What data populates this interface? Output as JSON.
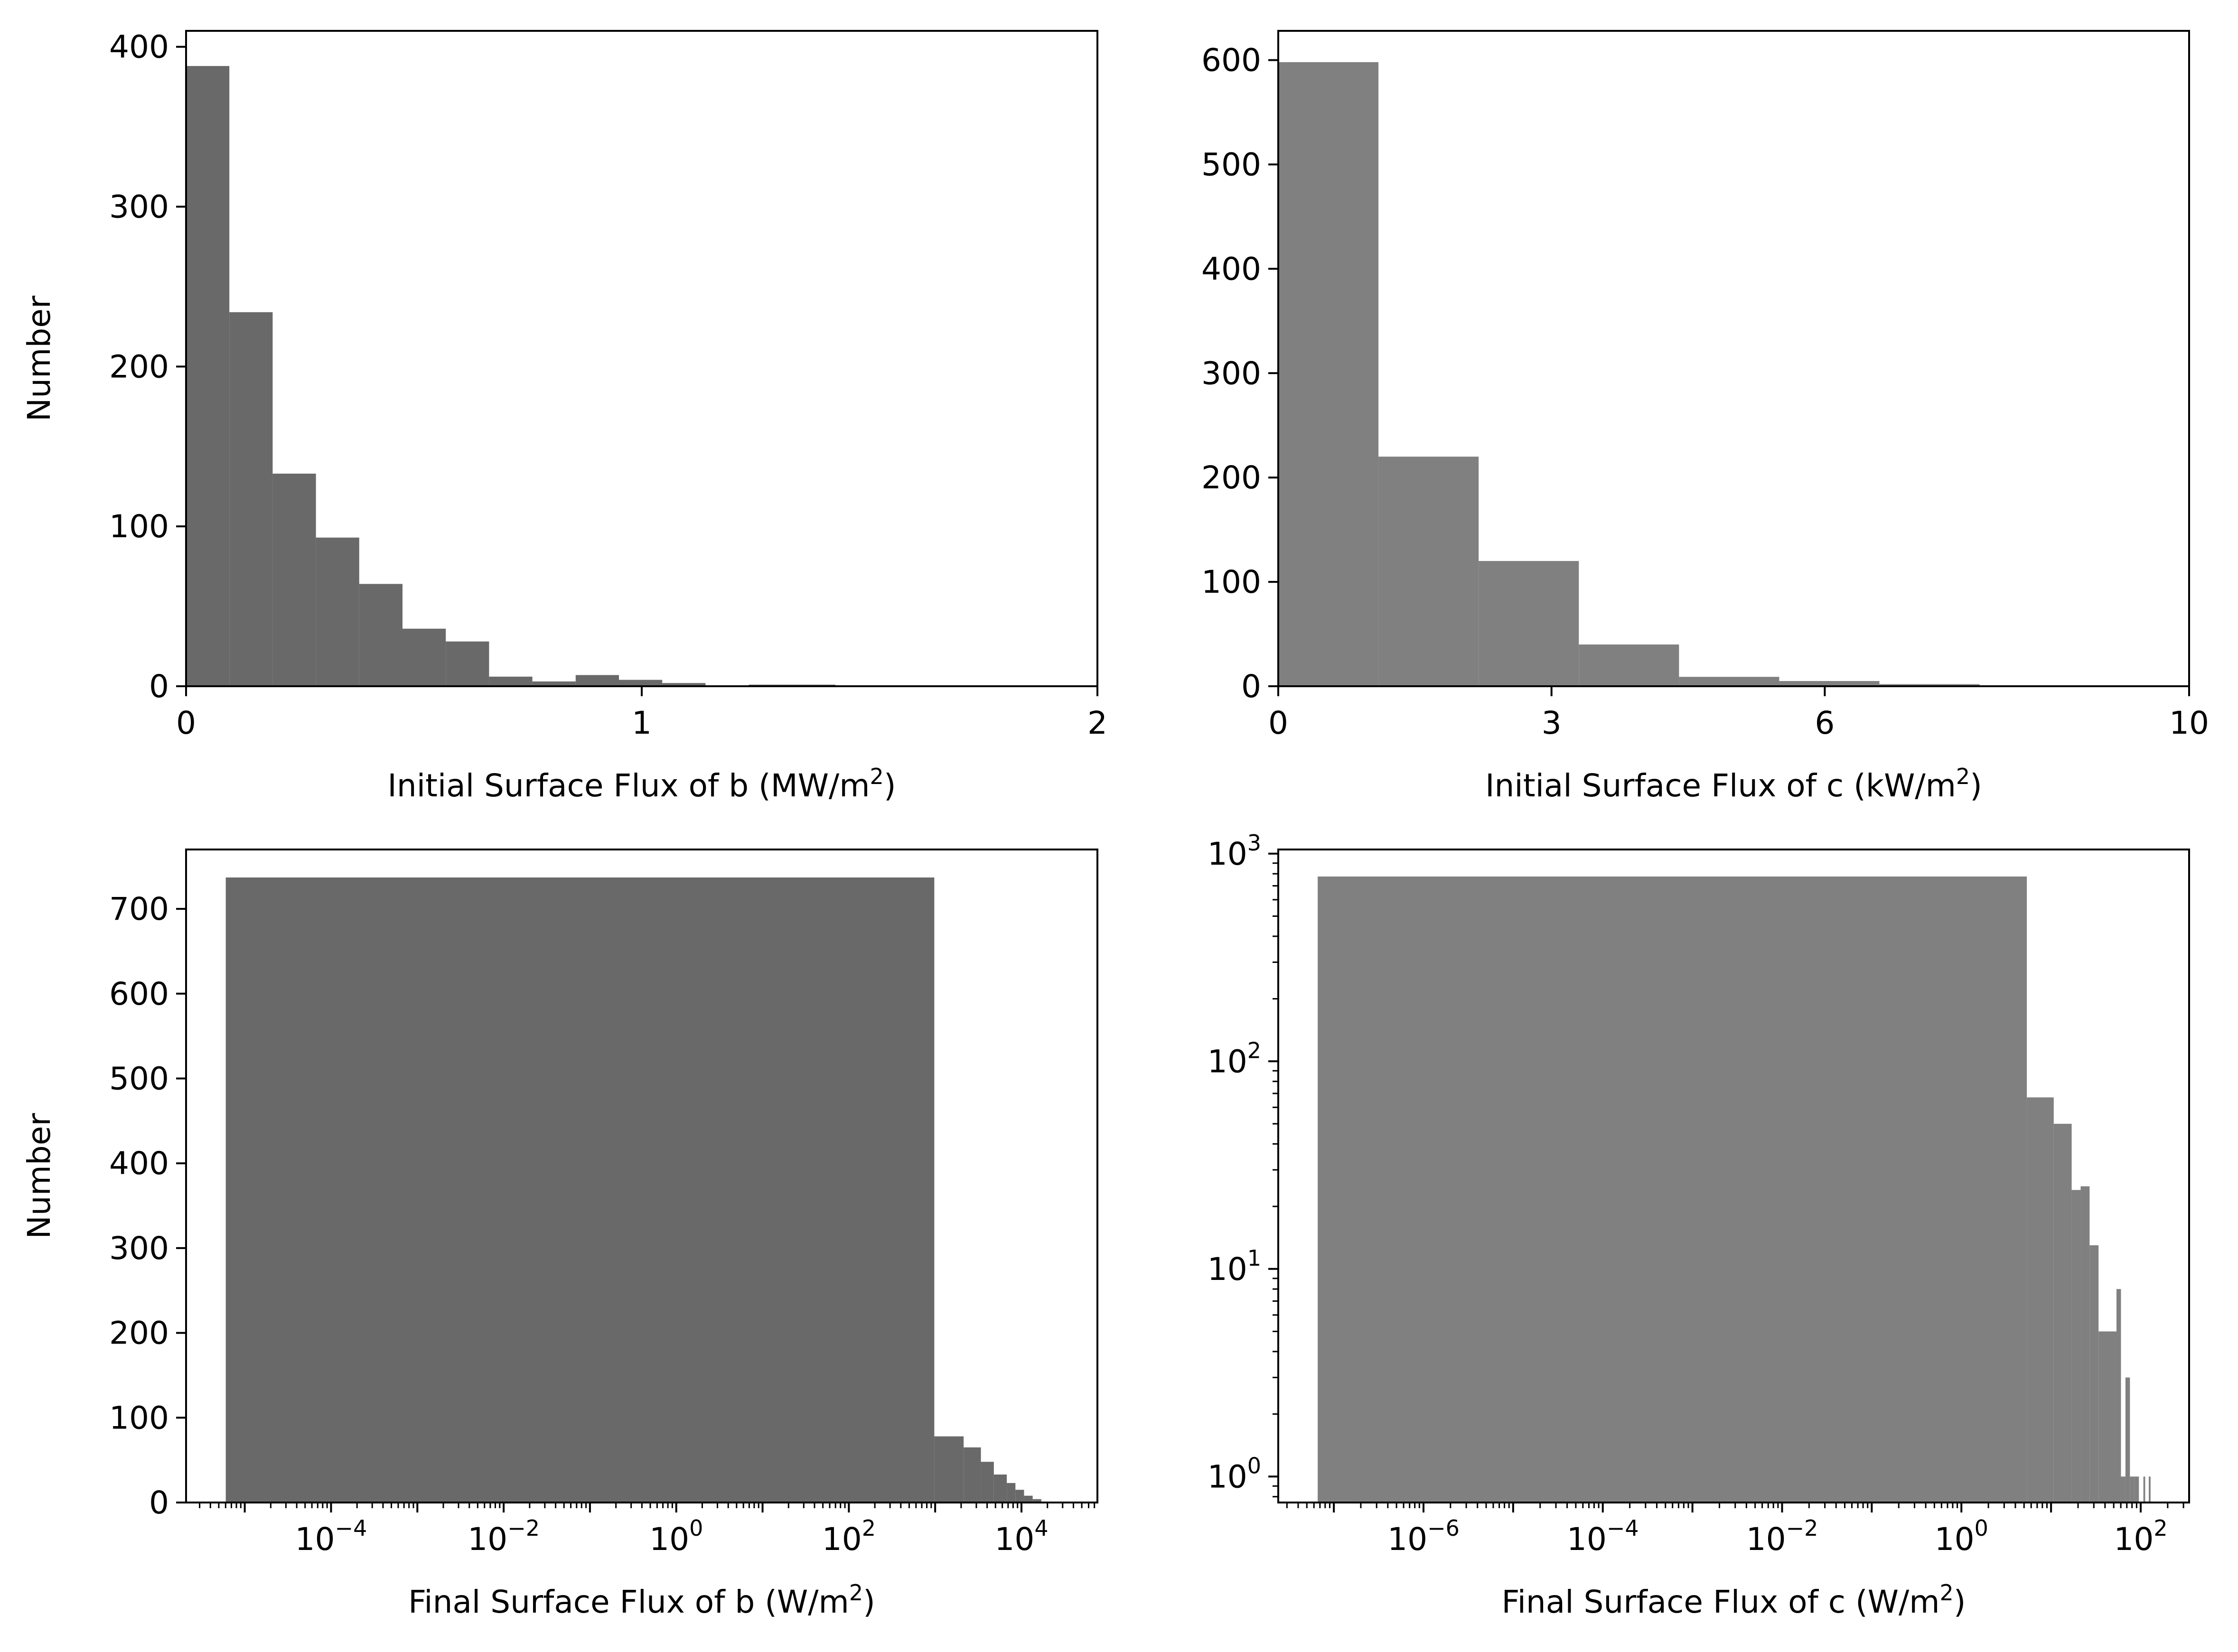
{
  "chart_data": [
    {
      "id": "b-initial",
      "type": "bar",
      "color": "#696969",
      "xlabel": "Initial Surface Flux of b (MW/m²)",
      "ylabel": "Number",
      "xscale": "linear",
      "yscale": "linear",
      "xlim": [
        0,
        2
      ],
      "ylim": [
        0,
        410
      ],
      "xticks": [
        {
          "v": 0,
          "label": "0"
        },
        {
          "v": 1,
          "label": "1"
        },
        {
          "v": 2,
          "label": "2"
        }
      ],
      "yticks": [
        {
          "v": 0,
          "label": "0"
        },
        {
          "v": 100,
          "label": "100"
        },
        {
          "v": 200,
          "label": "200"
        },
        {
          "v": 300,
          "label": "300"
        },
        {
          "v": 400,
          "label": "400"
        }
      ],
      "bins": [
        [
          0.0,
          0.095,
          388
        ],
        [
          0.095,
          0.19,
          234
        ],
        [
          0.19,
          0.285,
          133
        ],
        [
          0.285,
          0.38,
          93
        ],
        [
          0.38,
          0.475,
          64
        ],
        [
          0.475,
          0.57,
          36
        ],
        [
          0.57,
          0.665,
          28
        ],
        [
          0.665,
          0.76,
          6
        ],
        [
          0.76,
          0.855,
          3
        ],
        [
          0.855,
          0.95,
          7
        ],
        [
          0.95,
          1.045,
          4
        ],
        [
          1.045,
          1.14,
          2
        ],
        [
          1.14,
          1.235,
          0
        ],
        [
          1.235,
          1.33,
          1
        ],
        [
          1.33,
          1.425,
          1
        ]
      ]
    },
    {
      "id": "c-initial",
      "type": "bar",
      "color": "#808080",
      "xlabel": "Initial Surface Flux of c (kW/m²)",
      "ylabel": "",
      "xscale": "linear",
      "yscale": "linear",
      "xlim": [
        0,
        10
      ],
      "ylim": [
        0,
        628
      ],
      "xticks": [
        {
          "v": 0,
          "label": "0"
        },
        {
          "v": 3,
          "label": "3"
        },
        {
          "v": 6,
          "label": "6"
        },
        {
          "v": 10,
          "label": "10"
        }
      ],
      "yticks": [
        {
          "v": 0,
          "label": "0"
        },
        {
          "v": 100,
          "label": "100"
        },
        {
          "v": 200,
          "label": "200"
        },
        {
          "v": 300,
          "label": "300"
        },
        {
          "v": 400,
          "label": "400"
        },
        {
          "v": 500,
          "label": "500"
        },
        {
          "v": 600,
          "label": "600"
        }
      ],
      "bins": [
        [
          0.0,
          1.1,
          598
        ],
        [
          1.1,
          2.2,
          220
        ],
        [
          2.2,
          3.3,
          120
        ],
        [
          3.3,
          4.4,
          40
        ],
        [
          4.4,
          5.5,
          9
        ],
        [
          5.5,
          6.6,
          5
        ],
        [
          6.6,
          7.7,
          2
        ]
      ]
    },
    {
      "id": "b-final",
      "type": "bar",
      "color": "#696969",
      "xlabel": "Final Surface Flux of b (W/m²)",
      "ylabel": "Number",
      "xscale": "log",
      "yscale": "linear",
      "xlim": [
        -5.68,
        4.88
      ],
      "ylim": [
        0,
        770
      ],
      "xticks": [
        {
          "v": -4,
          "label": "10",
          "exp": "−4"
        },
        {
          "v": -2,
          "label": "10",
          "exp": "−2"
        },
        {
          "v": 0,
          "label": "10",
          "exp": "0"
        },
        {
          "v": 2,
          "label": "10",
          "exp": "2"
        },
        {
          "v": 4,
          "label": "10",
          "exp": "4"
        }
      ],
      "yticks": [
        {
          "v": 0,
          "label": "0"
        },
        {
          "v": 100,
          "label": "100"
        },
        {
          "v": 200,
          "label": "200"
        },
        {
          "v": 300,
          "label": "300"
        },
        {
          "v": 400,
          "label": "400"
        },
        {
          "v": 500,
          "label": "500"
        },
        {
          "v": 600,
          "label": "600"
        },
        {
          "v": 700,
          "label": "700"
        }
      ],
      "bins": [
        [
          -5.22,
          2.99,
          737
        ],
        [
          2.99,
          3.33,
          78
        ],
        [
          3.33,
          3.53,
          65
        ],
        [
          3.53,
          3.68,
          48
        ],
        [
          3.68,
          3.83,
          33
        ],
        [
          3.83,
          3.93,
          23
        ],
        [
          3.93,
          4.03,
          15
        ],
        [
          4.03,
          4.13,
          8
        ],
        [
          4.13,
          4.23,
          4
        ]
      ]
    },
    {
      "id": "c-final",
      "type": "bar",
      "color": "#808080",
      "xlabel": "Final Surface Flux of c (W/m²)",
      "ylabel": "",
      "xscale": "log",
      "yscale": "log",
      "xlim": [
        -7.62,
        2.54
      ],
      "ylim": [
        -0.125,
        3.02
      ],
      "xticks": [
        {
          "v": -6,
          "label": "10",
          "exp": "−6"
        },
        {
          "v": -4,
          "label": "10",
          "exp": "−4"
        },
        {
          "v": -2,
          "label": "10",
          "exp": "−2"
        },
        {
          "v": 0,
          "label": "10",
          "exp": "0"
        },
        {
          "v": 2,
          "label": "10",
          "exp": "2"
        }
      ],
      "yticks": [
        {
          "v": 0,
          "label": "10",
          "exp": "0"
        },
        {
          "v": 1,
          "label": "10",
          "exp": "1"
        },
        {
          "v": 2,
          "label": "10",
          "exp": "2"
        },
        {
          "v": 3,
          "label": "10",
          "exp": "3"
        }
      ],
      "bins": [
        [
          -7.18,
          0.73,
          776
        ],
        [
          0.73,
          1.03,
          67
        ],
        [
          1.03,
          1.23,
          50
        ],
        [
          1.23,
          1.33,
          24
        ],
        [
          1.33,
          1.43,
          25
        ],
        [
          1.43,
          1.53,
          13
        ],
        [
          1.53,
          1.73,
          5
        ],
        [
          1.73,
          1.78,
          8
        ],
        [
          1.78,
          1.83,
          1
        ],
        [
          1.83,
          1.88,
          3
        ],
        [
          1.88,
          1.93,
          1
        ],
        [
          1.93,
          1.98,
          1
        ],
        [
          2.03,
          2.05,
          1
        ],
        [
          2.09,
          2.11,
          1
        ]
      ]
    }
  ]
}
